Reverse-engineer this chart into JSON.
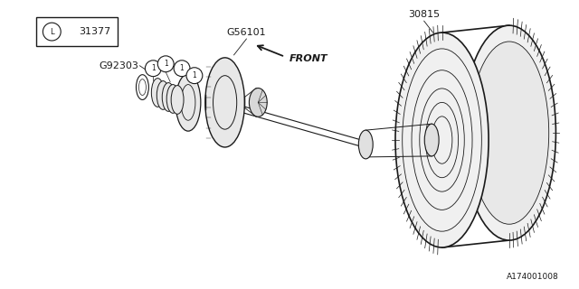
{
  "background_color": "#ffffff",
  "line_color": "#1a1a1a",
  "fig_width": 6.4,
  "fig_height": 3.2,
  "dpi": 100,
  "labels": {
    "31377": "31377",
    "30815": "30815",
    "G56101": "G56101",
    "G92303": "G92303",
    "FRONT": "FRONT",
    "bottom": "A174001008"
  }
}
